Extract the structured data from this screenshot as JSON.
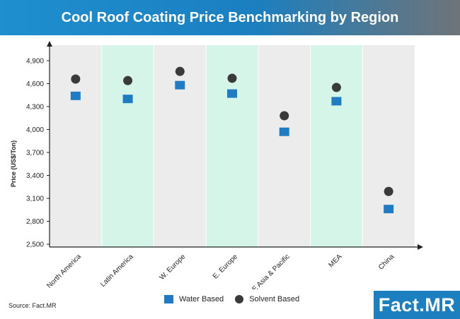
{
  "header": {
    "title": "Cool Roof Coating Price Benchmarking by Region"
  },
  "chart_data": {
    "type": "scatter",
    "title": "Cool Roof Coating Price Benchmarking by Region",
    "xlabel": "",
    "ylabel": "Price (US$/Ton)",
    "categories": [
      "North America",
      "Latin America",
      "W. Europe",
      "E. Europe",
      "SE Asia & Pacific",
      "MEA",
      "China"
    ],
    "ylim": [
      2500,
      4900
    ],
    "yticks": [
      "2,500",
      "2,800",
      "3,100",
      "3,400",
      "3,700",
      "4,000",
      "4,300",
      "4,600",
      "4,900"
    ],
    "ytick_values": [
      2500,
      2800,
      3100,
      3400,
      3700,
      4000,
      4300,
      4600,
      4900
    ],
    "band_colors": [
      "#ececec",
      "#d5f5e8"
    ],
    "series": [
      {
        "name": "Water Based",
        "marker": "square",
        "color": "#1f7cc4",
        "values": [
          4440,
          4400,
          4580,
          4470,
          3970,
          4370,
          2960
        ]
      },
      {
        "name": "Solvent Based",
        "marker": "circle",
        "color": "#3a3a3a",
        "values": [
          4660,
          4640,
          4760,
          4670,
          4180,
          4550,
          3190
        ]
      }
    ]
  },
  "legend": {
    "water_label": "Water Based",
    "solvent_label": "Solvent Based"
  },
  "footer": {
    "source": "Source: Fact.MR",
    "logo_text": "Fact.MR"
  }
}
